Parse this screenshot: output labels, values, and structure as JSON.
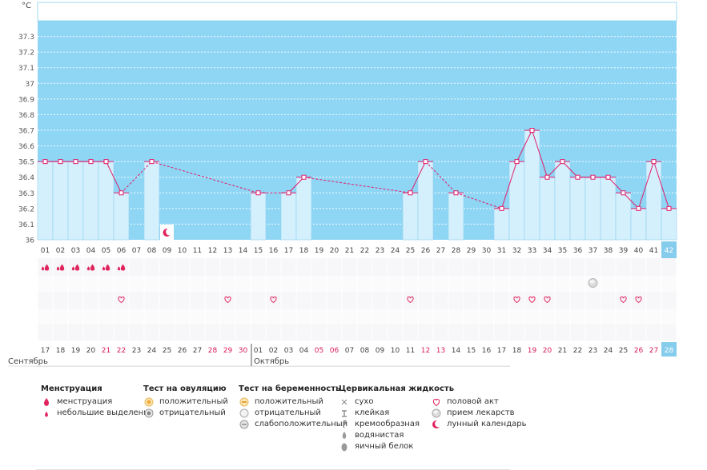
{
  "chart_data": {
    "type": "bar",
    "ylabel": "°C",
    "ylim": [
      36.0,
      37.4
    ],
    "y_ticks": [
      "36",
      "36.1",
      "36.2",
      "36.3",
      "36.4",
      "36.5",
      "36.6",
      "36.7",
      "36.8",
      "36.9",
      "37",
      "37.1",
      "37.2",
      "37.3"
    ],
    "cycle_days": [
      "01",
      "02",
      "03",
      "04",
      "05",
      "06",
      "07",
      "08",
      "09",
      "10",
      "11",
      "12",
      "13",
      "14",
      "15",
      "16",
      "17",
      "18",
      "19",
      "20",
      "21",
      "22",
      "23",
      "24",
      "25",
      "26",
      "27",
      "28",
      "29",
      "30",
      "31",
      "32",
      "33",
      "34",
      "35",
      "36",
      "37",
      "38",
      "39",
      "40",
      "41",
      "42"
    ],
    "dates": [
      "17",
      "18",
      "19",
      "20",
      "21",
      "22",
      "23",
      "24",
      "25",
      "26",
      "27",
      "28",
      "29",
      "30",
      "01",
      "02",
      "03",
      "04",
      "05",
      "06",
      "07",
      "08",
      "09",
      "10",
      "11",
      "12",
      "13",
      "14",
      "15",
      "16",
      "17",
      "18",
      "19",
      "20",
      "21",
      "22",
      "23",
      "24",
      "25",
      "26",
      "27",
      "28"
    ],
    "date_colors": [
      "n",
      "n",
      "n",
      "n",
      "r",
      "r",
      "n",
      "n",
      "n",
      "n",
      "n",
      "r",
      "r",
      "r",
      "n",
      "n",
      "n",
      "n",
      "r",
      "r",
      "n",
      "n",
      "n",
      "n",
      "n",
      "r",
      "r",
      "n",
      "n",
      "n",
      "n",
      "n",
      "r",
      "r",
      "n",
      "n",
      "n",
      "n",
      "n",
      "r",
      "r",
      "c"
    ],
    "months": [
      {
        "label": "Сентябрь",
        "start_index": 0
      },
      {
        "label": "Октябрь",
        "start_index": 14
      }
    ],
    "temperatures": [
      36.5,
      36.5,
      36.5,
      36.5,
      36.5,
      36.3,
      null,
      36.5,
      null,
      null,
      null,
      null,
      null,
      null,
      36.3,
      null,
      36.3,
      36.4,
      null,
      null,
      null,
      null,
      null,
      null,
      36.3,
      36.5,
      null,
      36.3,
      null,
      null,
      36.2,
      36.5,
      36.7,
      36.4,
      36.5,
      36.4,
      36.4,
      36.4,
      36.3,
      36.2,
      36.5,
      36.2
    ],
    "menstruation_days": [
      0,
      1,
      2,
      3,
      4,
      5
    ],
    "intercourse_days": [
      5,
      12,
      15,
      24,
      31,
      32,
      33,
      38,
      39
    ],
    "medication_days": [
      36
    ],
    "lunar_days": [
      8
    ],
    "current_day_index": 41
  },
  "legend": {
    "groups": [
      {
        "title": "Менструация",
        "items": [
          {
            "icon": "drop-large-icon",
            "label": "менструация"
          },
          {
            "icon": "drop-small-icon",
            "label": "небольшие выделения"
          }
        ]
      },
      {
        "title": "Тест на овуляцию",
        "items": [
          {
            "icon": "ovulation-positive-icon",
            "label": "положительный"
          },
          {
            "icon": "ovulation-negative-icon",
            "label": "отрицательный"
          }
        ]
      },
      {
        "title": "Тест на беременность",
        "items": [
          {
            "icon": "pregnancy-positive-icon",
            "label": "положительный"
          },
          {
            "icon": "pregnancy-negative-icon",
            "label": "отрицательный"
          },
          {
            "icon": "pregnancy-weak-icon",
            "label": "слабоположительный"
          }
        ]
      },
      {
        "title": "Цервикальная жидкость",
        "items": [
          {
            "icon": "dry-icon",
            "label": "сухо"
          },
          {
            "icon": "sticky-icon",
            "label": "клейкая"
          },
          {
            "icon": "creamy-icon",
            "label": "кремообразная"
          },
          {
            "icon": "watery-icon",
            "label": "водянистая"
          },
          {
            "icon": "eggwhite-icon",
            "label": "яичный белок"
          }
        ]
      },
      {
        "title": "",
        "items": [
          {
            "icon": "heart-icon",
            "label": "половой акт"
          },
          {
            "icon": "pill-icon",
            "label": "прием лекарств"
          },
          {
            "icon": "moon-icon",
            "label": "лунный календарь"
          }
        ]
      }
    ]
  },
  "colors": {
    "plot_bg": "#8fd6f5",
    "bar_fill": "#d4f0fd",
    "bar_stroke": "#8fd1ef",
    "line": "#e01d6a",
    "weekend": "#d81b5b",
    "current_day_bg": "#86ccec"
  }
}
